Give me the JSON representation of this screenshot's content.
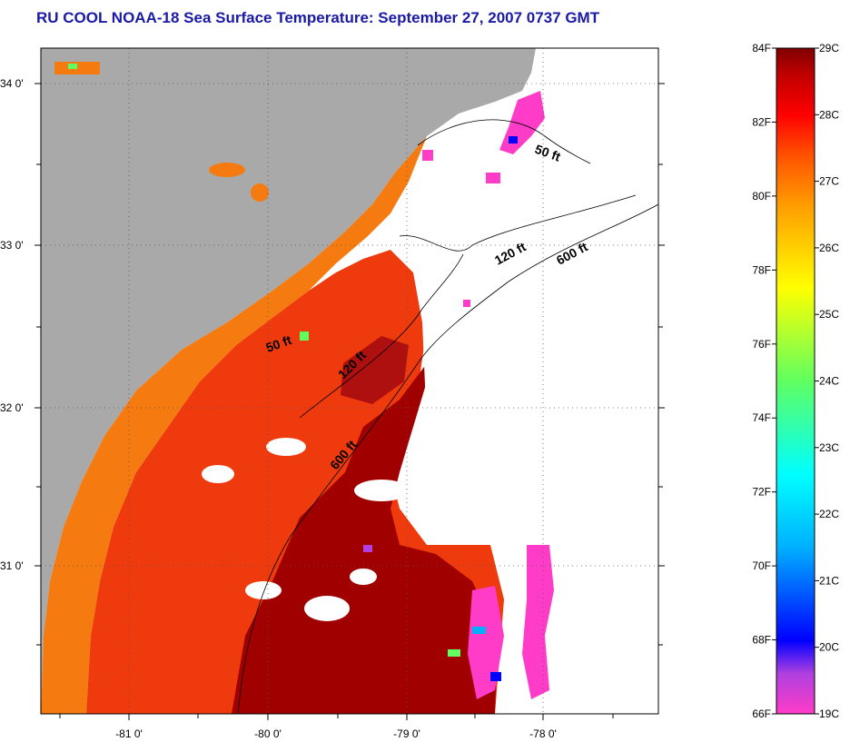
{
  "title": "RU COOL  NOAA-18  Sea Surface Temperature:  September 27, 2007 0737 GMT",
  "map": {
    "lat_labels": [
      "34 0'",
      "33 0'",
      "32 0'",
      "31 0'"
    ],
    "lon_labels": [
      "-81 0'",
      "-80 0'",
      "-79 0'",
      "-78 0'"
    ],
    "isobath_labels": {
      "north_50": "50 ft",
      "south_50": "50 ft",
      "north_120": "120 ft",
      "south_120": "120 ft",
      "north_600": "600 ft",
      "south_600": "600 ft"
    },
    "colors": {
      "land": "#a9a9a9",
      "cloud": "#ffffff",
      "warm": "#ee3a0c",
      "hot": "#a00000",
      "shelf": "#f57a10",
      "cold": "#ff3cc8"
    }
  },
  "colorbar": {
    "f_labels": [
      "84F",
      "82F",
      "80F",
      "78F",
      "76F",
      "74F",
      "72F",
      "70F",
      "68F",
      "66F"
    ],
    "c_labels": [
      "29C",
      "28C",
      "27C",
      "26C",
      "25C",
      "24C",
      "23C",
      "22C",
      "21C",
      "20C",
      "19C"
    ],
    "stops": [
      "#ff3cc8",
      "#b040e0",
      "#0000ff",
      "#00b0ff",
      "#00ffff",
      "#60ff60",
      "#ffff00",
      "#ffa000",
      "#ff5000",
      "#ff0000",
      "#c00000",
      "#800000"
    ]
  }
}
